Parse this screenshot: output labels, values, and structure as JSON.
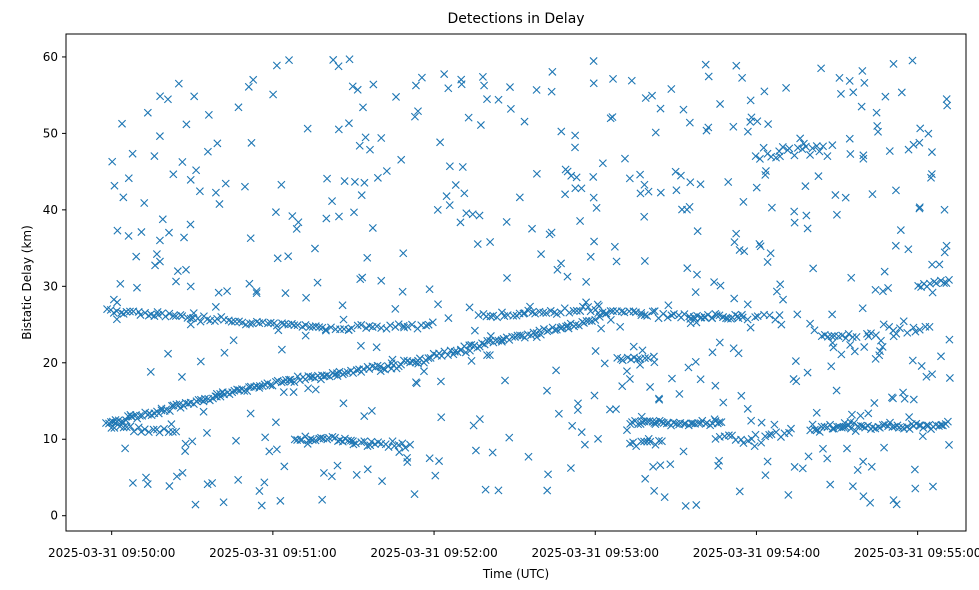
{
  "chart_data": {
    "type": "scatter",
    "title": "Detections in Delay",
    "xlabel": "Time (UTC)",
    "ylabel": "Bistatic Delay (km)",
    "x_axis_type": "time",
    "x_start": "2025-03-31 09:50:00",
    "xlim_seconds": [
      -17,
      318
    ],
    "ylim": [
      -2,
      63
    ],
    "xticks": [
      {
        "label": "2025-03-31 09:50:00",
        "t": 0
      },
      {
        "label": "2025-03-31 09:51:00",
        "t": 60
      },
      {
        "label": "2025-03-31 09:52:00",
        "t": 120
      },
      {
        "label": "2025-03-31 09:53:00",
        "t": 180
      },
      {
        "label": "2025-03-31 09:54:00",
        "t": 240
      },
      {
        "label": "2025-03-31 09:55:00",
        "t": 300
      }
    ],
    "yticks": [
      0,
      10,
      20,
      30,
      40,
      50,
      60
    ],
    "grid": false,
    "marker": "x",
    "color": "#1f77b4",
    "tracks": [
      {
        "from": [
          -2,
          12.0
        ],
        "to": [
          55,
          17.0
        ],
        "step": 0.9,
        "jitter": 0.25
      },
      {
        "from": [
          55,
          17.0
        ],
        "to": [
          100,
          19.5
        ],
        "step": 1.0,
        "jitter": 0.25
      },
      {
        "from": [
          100,
          19.0
        ],
        "to": [
          145,
          23.0
        ],
        "step": 1.0,
        "jitter": 0.3
      },
      {
        "from": [
          145,
          23.0
        ],
        "to": [
          180,
          25.5
        ],
        "step": 1.0,
        "jitter": 0.3
      },
      {
        "from": [
          -2,
          26.8
        ],
        "to": [
          80,
          24.5
        ],
        "step": 1.3,
        "jitter": 0.25
      },
      {
        "from": [
          80,
          24.5
        ],
        "to": [
          120,
          25.0
        ],
        "step": 1.6,
        "jitter": 0.3
      },
      {
        "from": [
          138,
          26.0
        ],
        "to": [
          180,
          27.0
        ],
        "step": 1.4,
        "jitter": 0.3
      },
      {
        "from": [
          180,
          26.8
        ],
        "to": [
          235,
          25.8
        ],
        "step": 1.4,
        "jitter": 0.3
      },
      {
        "from": [
          215,
          26.0
        ],
        "to": [
          250,
          26.0
        ],
        "step": 2.0,
        "jitter": 0.4
      },
      {
        "from": [
          0,
          11.5
        ],
        "to": [
          24,
          11.0
        ],
        "step": 1.4,
        "jitter": 0.3
      },
      {
        "from": [
          68,
          10.0
        ],
        "to": [
          90,
          10.0
        ],
        "step": 1.0,
        "jitter": 0.25
      },
      {
        "from": [
          90,
          9.5
        ],
        "to": [
          112,
          9.3
        ],
        "step": 1.3,
        "jitter": 0.3
      },
      {
        "from": [
          193,
          12.2
        ],
        "to": [
          228,
          12.0
        ],
        "step": 0.9,
        "jitter": 0.25
      },
      {
        "from": [
          193,
          9.5
        ],
        "to": [
          205,
          9.5
        ],
        "step": 1.3,
        "jitter": 0.3
      },
      {
        "from": [
          225,
          10.0
        ],
        "to": [
          252,
          10.5
        ],
        "step": 1.5,
        "jitter": 0.4
      },
      {
        "from": [
          260,
          11.5
        ],
        "to": [
          312,
          11.8
        ],
        "step": 0.9,
        "jitter": 0.35
      },
      {
        "from": [
          280,
          23.5
        ],
        "to": [
          305,
          24.5
        ],
        "step": 1.5,
        "jitter": 0.8
      },
      {
        "from": [
          300,
          30.0
        ],
        "to": [
          312,
          30.6
        ],
        "step": 1.2,
        "jitter": 0.3
      },
      {
        "from": [
          240,
          47.0
        ],
        "to": [
          268,
          48.0
        ],
        "step": 1.4,
        "jitter": 0.6
      },
      {
        "from": [
          188,
          20.5
        ],
        "to": [
          200,
          20.5
        ],
        "step": 1.3,
        "jitter": 0.25
      },
      {
        "from": [
          264,
          23.5
        ],
        "to": [
          278,
          23.5
        ],
        "step": 1.3,
        "jitter": 0.3
      }
    ],
    "random_points": {
      "count": 560,
      "seed": 20250331,
      "tmin": 0,
      "tmax": 312,
      "ymin": 1,
      "ymax": 60
    }
  }
}
